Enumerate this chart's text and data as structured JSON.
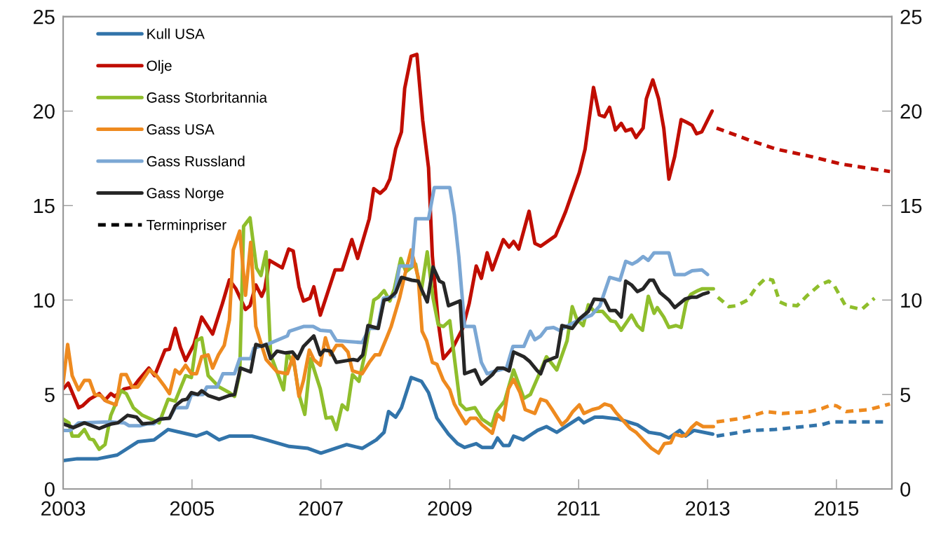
{
  "chart_data": {
    "type": "line",
    "line_style": "solid",
    "legend": "top left",
    "xlim": [
      2003,
      2015.86
    ],
    "xticks": [
      2003,
      2005,
      2007,
      2009,
      2011,
      2013,
      2015
    ],
    "ylim": [
      0,
      25
    ],
    "yticks": [
      0,
      5,
      10,
      15,
      20,
      25
    ],
    "y2lim": [
      0,
      25
    ],
    "y2ticks": [
      0,
      5,
      10,
      15,
      20,
      25
    ],
    "series": [
      {
        "name": "Kull USA",
        "color": "#3274aa",
        "x": [
          2003.0,
          2003.22,
          2003.54,
          2003.84,
          2004.16,
          2004.41,
          2004.63,
          2005.07,
          2005.23,
          2005.42,
          2005.58,
          2005.93,
          2006.15,
          2006.51,
          2006.8,
          2007.0,
          2007.4,
          2007.64,
          2007.86,
          2007.98,
          2008.05,
          2008.16,
          2008.25,
          2008.4,
          2008.56,
          2008.67,
          2008.8,
          2008.98,
          2009.12,
          2009.23,
          2009.41,
          2009.5,
          2009.66,
          2009.74,
          2009.83,
          2009.92,
          2009.99,
          2010.14,
          2010.36,
          2010.5,
          2010.66,
          2010.82,
          2011.0,
          2011.08,
          2011.25,
          2011.37,
          2011.62,
          2011.91,
          2012.09,
          2012.27,
          2012.4,
          2012.57,
          2012.66,
          2012.79,
          2013.08
        ],
        "values": [
          1.5,
          1.6,
          1.6,
          1.8,
          2.5,
          2.6,
          3.15,
          2.8,
          3.0,
          2.6,
          2.8,
          2.8,
          2.6,
          2.25,
          2.15,
          1.9,
          2.35,
          2.15,
          2.6,
          3.0,
          4.1,
          3.8,
          4.3,
          5.9,
          5.7,
          5.1,
          3.75,
          2.9,
          2.4,
          2.2,
          2.4,
          2.2,
          2.2,
          2.7,
          2.3,
          2.3,
          2.8,
          2.6,
          3.1,
          3.3,
          3.0,
          3.35,
          3.75,
          3.5,
          3.8,
          3.8,
          3.7,
          3.4,
          3.0,
          2.9,
          2.7,
          3.1,
          2.8,
          3.1,
          2.9
        ]
      },
      {
        "color": "#3274aa",
        "line_style": "dashed",
        "x": [
          2013.14,
          2013.68,
          2014.05,
          2014.77,
          2014.92,
          2015.75
        ],
        "values": [
          2.8,
          3.1,
          3.15,
          3.4,
          3.55,
          3.55
        ]
      },
      {
        "name": "Olje",
        "color": "#c00d00",
        "x": [
          2003.0,
          2003.08,
          2003.13,
          2003.24,
          2003.3,
          2003.41,
          2003.56,
          2003.65,
          2003.74,
          2003.8,
          2003.95,
          2004.09,
          2004.18,
          2004.33,
          2004.42,
          2004.58,
          2004.65,
          2004.74,
          2004.82,
          2004.9,
          2005.03,
          2005.15,
          2005.32,
          2005.47,
          2005.58,
          2005.68,
          2005.83,
          2005.9,
          2005.99,
          2006.08,
          2006.13,
          2006.2,
          2006.4,
          2006.5,
          2006.57,
          2006.66,
          2006.73,
          2006.83,
          2006.89,
          2006.99,
          2007.22,
          2007.33,
          2007.48,
          2007.57,
          2007.75,
          2007.82,
          2007.92,
          2008.0,
          2008.07,
          2008.16,
          2008.25,
          2008.3,
          2008.4,
          2008.49,
          2008.58,
          2008.67,
          2008.73,
          2008.82,
          2008.9,
          2009.05,
          2009.2,
          2009.3,
          2009.41,
          2009.49,
          2009.58,
          2009.66,
          2009.83,
          2009.92,
          2009.99,
          2010.07,
          2010.23,
          2010.32,
          2010.41,
          2010.64,
          2010.74,
          2010.8,
          2011.01,
          2011.1,
          2011.23,
          2011.32,
          2011.4,
          2011.48,
          2011.57,
          2011.66,
          2011.73,
          2011.82,
          2011.89,
          2012.0,
          2012.05,
          2012.15,
          2012.24,
          2012.32,
          2012.4,
          2012.49,
          2012.59,
          2012.68,
          2012.76,
          2012.83,
          2012.91,
          2013.07
        ],
        "values": [
          5.3,
          5.6,
          5.2,
          4.3,
          4.4,
          4.75,
          5.05,
          4.7,
          5.05,
          4.9,
          5.3,
          5.4,
          5.8,
          6.4,
          6.0,
          7.35,
          7.4,
          8.5,
          7.5,
          6.8,
          7.65,
          9.1,
          8.2,
          9.8,
          11.07,
          10.6,
          9.5,
          9.7,
          10.8,
          10.2,
          10.6,
          12.1,
          11.7,
          12.7,
          12.6,
          10.7,
          9.95,
          10.1,
          10.7,
          9.2,
          11.6,
          11.6,
          13.2,
          12.2,
          14.3,
          15.9,
          15.65,
          15.9,
          16.4,
          18.0,
          18.9,
          21.2,
          22.9,
          23.0,
          19.5,
          17.0,
          12.3,
          8.85,
          6.9,
          7.5,
          8.5,
          9.8,
          11.8,
          11.15,
          12.5,
          11.6,
          13.2,
          12.8,
          13.1,
          12.7,
          14.7,
          13.0,
          12.85,
          13.4,
          14.2,
          14.7,
          16.75,
          18.0,
          21.25,
          19.8,
          19.7,
          20.2,
          19.0,
          19.35,
          18.95,
          19.05,
          18.6,
          19.1,
          20.65,
          21.65,
          20.65,
          19.1,
          16.4,
          17.6,
          19.55,
          19.4,
          19.25,
          18.8,
          18.9,
          20.0
        ]
      },
      {
        "color": "#c00d00",
        "line_style": "dashed",
        "x": [
          2013.14,
          2013.62,
          2014.05,
          2014.6,
          2015.07,
          2015.83
        ],
        "values": [
          19.1,
          18.5,
          18.0,
          17.6,
          17.2,
          16.8
        ]
      },
      {
        "name": "Gass Storbritannia",
        "color": "#8fbe2c",
        "x": [
          2003.0,
          2003.09,
          2003.14,
          2003.24,
          2003.33,
          2003.41,
          2003.47,
          2003.56,
          2003.65,
          2003.74,
          2003.9,
          2003.98,
          2004.09,
          2004.23,
          2004.49,
          2004.63,
          2004.74,
          2004.9,
          2004.99,
          2005.07,
          2005.15,
          2005.25,
          2005.42,
          2005.58,
          2005.66,
          2005.74,
          2005.8,
          2005.9,
          2006.0,
          2006.07,
          2006.15,
          2006.22,
          2006.33,
          2006.42,
          2006.48,
          2006.59,
          2006.66,
          2006.75,
          2006.84,
          2006.99,
          2007.08,
          2007.17,
          2007.24,
          2007.33,
          2007.41,
          2007.49,
          2007.59,
          2007.68,
          2007.82,
          2007.89,
          2007.98,
          2008.07,
          2008.14,
          2008.24,
          2008.32,
          2008.47,
          2008.55,
          2008.65,
          2008.74,
          2008.82,
          2008.9,
          2009.0,
          2009.08,
          2009.16,
          2009.25,
          2009.39,
          2009.5,
          2009.65,
          2009.72,
          2009.85,
          2009.99,
          2010.15,
          2010.25,
          2010.39,
          2010.5,
          2010.66,
          2010.82,
          2010.9,
          2010.97,
          2011.07,
          2011.15,
          2011.24,
          2011.37,
          2011.5,
          2011.57,
          2011.66,
          2011.82,
          2011.91,
          2011.99,
          2012.08,
          2012.17,
          2012.22,
          2012.32,
          2012.4,
          2012.51,
          2012.59,
          2012.67,
          2012.74,
          2012.85,
          2012.92,
          2013.09
        ],
        "values": [
          3.7,
          3.5,
          2.8,
          2.8,
          3.15,
          2.65,
          2.6,
          2.1,
          2.35,
          3.9,
          5.2,
          5.05,
          4.3,
          3.9,
          3.5,
          4.75,
          4.65,
          6.0,
          5.9,
          7.85,
          8.0,
          6.0,
          5.4,
          5.1,
          4.9,
          6.1,
          13.9,
          14.35,
          11.7,
          11.3,
          12.55,
          7.1,
          6.1,
          5.25,
          7.2,
          6.5,
          5.0,
          3.95,
          6.9,
          5.3,
          3.75,
          3.8,
          3.15,
          4.45,
          4.2,
          6.05,
          5.7,
          7.1,
          10.0,
          10.15,
          10.5,
          9.95,
          10.6,
          12.2,
          11.5,
          11.9,
          10.3,
          12.55,
          10.1,
          8.7,
          8.6,
          8.9,
          6.7,
          4.5,
          4.2,
          4.3,
          3.7,
          3.35,
          4.1,
          4.65,
          6.3,
          4.8,
          5.0,
          6.1,
          7.0,
          6.3,
          7.85,
          9.65,
          9.0,
          8.65,
          9.75,
          9.4,
          9.4,
          8.9,
          8.85,
          8.4,
          9.2,
          8.65,
          8.4,
          10.2,
          9.3,
          9.6,
          9.1,
          8.55,
          8.65,
          8.55,
          9.9,
          10.3,
          10.5,
          10.6,
          10.6
        ]
      },
      {
        "color": "#8fbe2c",
        "line_style": "dashed",
        "x": [
          2013.16,
          2013.33,
          2013.45,
          2013.62,
          2013.76,
          2013.9,
          2014.01,
          2014.12,
          2014.22,
          2014.39,
          2014.55,
          2014.74,
          2014.88,
          2014.96,
          2015.14,
          2015.39,
          2015.59
        ],
        "values": [
          10.15,
          9.65,
          9.7,
          10.0,
          10.7,
          11.15,
          11.05,
          9.9,
          9.75,
          9.7,
          10.25,
          10.8,
          11.0,
          10.8,
          9.7,
          9.5,
          10.1
        ]
      },
      {
        "name": "Gass USA",
        "color": "#ee8a1f",
        "x": [
          2003.0,
          2003.07,
          2003.14,
          2003.24,
          2003.33,
          2003.41,
          2003.49,
          2003.58,
          2003.67,
          2003.82,
          2003.9,
          2003.98,
          2004.07,
          2004.16,
          2004.23,
          2004.34,
          2004.45,
          2004.56,
          2004.65,
          2004.74,
          2004.81,
          2004.9,
          2004.99,
          2005.07,
          2005.15,
          2005.25,
          2005.32,
          2005.41,
          2005.5,
          2005.58,
          2005.64,
          2005.74,
          2005.83,
          2005.91,
          2005.99,
          2006.08,
          2006.15,
          2006.32,
          2006.48,
          2006.57,
          2006.66,
          2006.73,
          2006.82,
          2006.89,
          2006.99,
          2007.07,
          2007.15,
          2007.24,
          2007.33,
          2007.42,
          2007.49,
          2007.64,
          2007.75,
          2007.84,
          2007.91,
          2008.02,
          2008.09,
          2008.22,
          2008.3,
          2008.4,
          2008.51,
          2008.57,
          2008.64,
          2008.73,
          2008.8,
          2008.9,
          2009.0,
          2009.07,
          2009.16,
          2009.25,
          2009.32,
          2009.41,
          2009.5,
          2009.59,
          2009.66,
          2009.74,
          2009.83,
          2009.91,
          2009.99,
          2010.09,
          2010.17,
          2010.32,
          2010.41,
          2010.5,
          2010.58,
          2010.74,
          2010.82,
          2010.91,
          2011.01,
          2011.08,
          2011.21,
          2011.32,
          2011.4,
          2011.5,
          2011.59,
          2011.8,
          2011.89,
          2012.0,
          2012.13,
          2012.24,
          2012.33,
          2012.43,
          2012.49,
          2012.6,
          2012.66,
          2012.75,
          2012.83,
          2012.93,
          2013.09
        ],
        "values": [
          5.6,
          7.65,
          6.0,
          5.25,
          5.75,
          5.75,
          5.0,
          4.95,
          4.65,
          4.45,
          6.05,
          6.05,
          5.4,
          5.4,
          5.75,
          6.3,
          6.0,
          5.5,
          5.05,
          6.3,
          6.1,
          6.55,
          6.1,
          6.1,
          7.0,
          7.1,
          6.4,
          7.1,
          7.6,
          8.95,
          12.65,
          13.65,
          10.25,
          13.05,
          8.6,
          7.6,
          6.85,
          6.2,
          6.1,
          7.05,
          4.9,
          5.75,
          7.35,
          6.85,
          6.55,
          8.0,
          7.1,
          7.6,
          7.6,
          7.25,
          6.25,
          6.1,
          6.7,
          7.1,
          7.1,
          8.0,
          8.6,
          10.1,
          11.3,
          12.65,
          11.2,
          8.35,
          7.85,
          6.7,
          6.6,
          5.75,
          5.25,
          4.5,
          3.95,
          3.45,
          3.75,
          3.75,
          3.4,
          3.15,
          2.95,
          3.95,
          3.65,
          5.3,
          5.8,
          5.1,
          4.2,
          4.0,
          4.75,
          4.65,
          4.25,
          3.4,
          3.65,
          4.1,
          4.45,
          4.0,
          4.2,
          4.3,
          4.5,
          4.4,
          4.0,
          3.2,
          3.0,
          2.6,
          2.15,
          1.9,
          2.4,
          2.45,
          2.9,
          2.8,
          2.85,
          3.25,
          3.5,
          3.3,
          3.3
        ]
      },
      {
        "color": "#ee8a1f",
        "line_style": "dashed",
        "x": [
          2013.14,
          2013.54,
          2013.72,
          2013.9,
          2014.16,
          2014.6,
          2014.77,
          2014.92,
          2015.0,
          2015.15,
          2015.5,
          2015.83
        ],
        "values": [
          3.55,
          3.75,
          3.9,
          4.1,
          4.0,
          4.1,
          4.25,
          4.45,
          4.4,
          4.1,
          4.2,
          4.5
        ]
      },
      {
        "name": "Gass Russland",
        "color": "#7ba7d4",
        "x": [
          2003.0,
          2003.11,
          2003.24,
          2003.73,
          2003.95,
          2004.02,
          2004.2,
          2004.3,
          2004.41,
          2004.49,
          2004.65,
          2004.74,
          2004.92,
          2004.99,
          2005.17,
          2005.23,
          2005.39,
          2005.48,
          2005.66,
          2005.74,
          2005.91,
          2005.96,
          2006.2,
          2006.48,
          2006.51,
          2006.73,
          2006.88,
          2006.99,
          2007.15,
          2007.24,
          2007.64,
          2007.75,
          2007.88,
          2007.97,
          2008.14,
          2008.22,
          2008.41,
          2008.47,
          2008.67,
          2008.76,
          2009.0,
          2009.07,
          2009.14,
          2009.23,
          2009.38,
          2009.49,
          2009.58,
          2009.71,
          2009.88,
          2009.98,
          2010.15,
          2010.25,
          2010.32,
          2010.41,
          2010.5,
          2010.61,
          2010.7,
          2010.86,
          2011.04,
          2011.2,
          2011.33,
          2011.48,
          2011.64,
          2011.73,
          2011.83,
          2011.91,
          2012.0,
          2012.08,
          2012.17,
          2012.4,
          2012.49,
          2012.65,
          2012.76,
          2012.91,
          2013.0
        ],
        "values": [
          3.1,
          3.1,
          3.5,
          3.55,
          3.5,
          3.35,
          3.35,
          3.45,
          3.45,
          3.7,
          3.75,
          4.3,
          4.3,
          5.0,
          5.0,
          5.4,
          5.4,
          6.1,
          6.1,
          6.9,
          6.9,
          7.45,
          7.7,
          8.1,
          8.35,
          8.6,
          8.6,
          8.4,
          8.35,
          7.85,
          7.75,
          8.5,
          8.5,
          10.1,
          10.2,
          11.8,
          11.8,
          14.3,
          14.3,
          15.95,
          15.95,
          14.5,
          12.3,
          8.6,
          8.6,
          6.7,
          6.1,
          6.25,
          6.4,
          7.55,
          7.55,
          8.35,
          7.9,
          8.1,
          8.5,
          8.55,
          8.4,
          8.7,
          9.0,
          9.2,
          9.7,
          11.2,
          11.05,
          12.05,
          11.9,
          12.05,
          12.3,
          12.1,
          12.5,
          12.5,
          11.35,
          11.35,
          11.55,
          11.6,
          11.35
        ]
      },
      {
        "name": "Gass Norge",
        "color": "#262626",
        "x": [
          2003.0,
          2003.16,
          2003.33,
          2003.56,
          2003.67,
          2003.76,
          2003.85,
          2004.0,
          2004.14,
          2004.23,
          2004.39,
          2004.5,
          2004.65,
          2004.74,
          2004.85,
          2004.92,
          2004.99,
          2005.09,
          2005.15,
          2005.25,
          2005.42,
          2005.58,
          2005.66,
          2005.75,
          2005.91,
          2005.99,
          2006.08,
          2006.15,
          2006.22,
          2006.32,
          2006.45,
          2006.56,
          2006.64,
          2006.73,
          2006.89,
          2006.99,
          2007.05,
          2007.15,
          2007.24,
          2007.41,
          2007.5,
          2007.57,
          2007.65,
          2007.73,
          2007.89,
          2007.98,
          2008.05,
          2008.16,
          2008.25,
          2008.41,
          2008.51,
          2008.57,
          2008.65,
          2008.74,
          2008.84,
          2008.9,
          2008.98,
          2009.16,
          2009.23,
          2009.39,
          2009.49,
          2009.66,
          2009.74,
          2009.83,
          2009.92,
          2009.99,
          2010.15,
          2010.24,
          2010.36,
          2010.41,
          2010.48,
          2010.66,
          2010.74,
          2010.9,
          2011.01,
          2011.15,
          2011.24,
          2011.4,
          2011.48,
          2011.57,
          2011.66,
          2011.73,
          2011.82,
          2011.91,
          2012.0,
          2012.1,
          2012.16,
          2012.26,
          2012.4,
          2012.49,
          2012.65,
          2012.75,
          2012.83,
          2012.92,
          2013.01
        ],
        "values": [
          3.45,
          3.25,
          3.5,
          3.2,
          3.35,
          3.45,
          3.5,
          3.9,
          3.8,
          3.45,
          3.5,
          3.7,
          3.75,
          4.4,
          4.7,
          4.75,
          5.1,
          5.0,
          5.2,
          4.95,
          4.75,
          4.95,
          5.0,
          6.4,
          6.2,
          7.65,
          7.55,
          7.65,
          6.9,
          7.3,
          7.2,
          7.25,
          6.9,
          7.55,
          8.1,
          7.1,
          7.35,
          7.3,
          6.7,
          6.8,
          6.85,
          6.8,
          7.1,
          8.65,
          8.5,
          10.0,
          10.05,
          10.4,
          11.2,
          11.05,
          11.0,
          10.5,
          9.9,
          11.75,
          11.0,
          10.9,
          9.7,
          9.95,
          6.1,
          6.3,
          5.55,
          6.05,
          6.4,
          6.4,
          6.25,
          7.25,
          7.0,
          6.75,
          6.25,
          6.1,
          6.75,
          7.0,
          8.65,
          8.5,
          9.0,
          9.4,
          10.05,
          10.0,
          9.45,
          9.45,
          9.1,
          11.0,
          10.8,
          10.45,
          10.6,
          11.05,
          11.05,
          10.4,
          10.0,
          9.6,
          10.05,
          10.15,
          10.15,
          10.3,
          10.4
        ]
      },
      {
        "name": "Terminpriser",
        "color": "#000000",
        "line_style": "dashed"
      }
    ]
  }
}
